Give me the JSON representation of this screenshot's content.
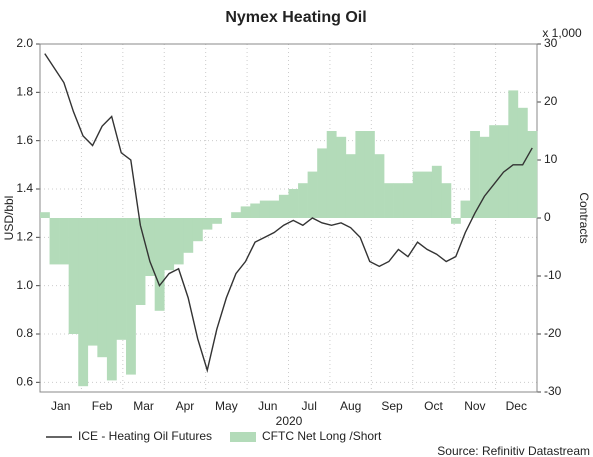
{
  "chart_data": {
    "type": "line",
    "title": "Nymex Heating Oil",
    "y_label": "USD/bbl",
    "y2_label": "Contracts",
    "y2_unit": "x 1,000",
    "x_label": "2020",
    "source": "Source: Refinitiv Datastream",
    "months": [
      "Jan",
      "Feb",
      "Mar",
      "Apr",
      "May",
      "Jun",
      "Jul",
      "Aug",
      "Sep",
      "Oct",
      "Nov",
      "Dec"
    ],
    "ylim": [
      0.56,
      2.0
    ],
    "yticks": [
      {
        "value": 0.6,
        "label": "0.6"
      },
      0.8,
      {
        "value": 1.0,
        "label": "1.0"
      },
      1.2,
      1.4,
      1.6,
      1.8,
      {
        "value": 2.0,
        "label": "2.0"
      }
    ],
    "y2lim": [
      -30,
      30
    ],
    "y2ticks": [
      -30,
      -20,
      -10,
      0,
      10,
      20,
      30
    ],
    "grid": true,
    "series": [
      {
        "name": "ICE - Heating Oil Futures",
        "color": "#333333",
        "kind": "line",
        "values": [
          1.96,
          1.9,
          1.84,
          1.72,
          1.62,
          1.58,
          1.66,
          1.7,
          1.55,
          1.52,
          1.25,
          1.1,
          1.0,
          1.05,
          1.07,
          0.95,
          0.78,
          0.65,
          0.82,
          0.95,
          1.05,
          1.1,
          1.18,
          1.2,
          1.22,
          1.25,
          1.27,
          1.25,
          1.28,
          1.26,
          1.25,
          1.26,
          1.24,
          1.2,
          1.1,
          1.08,
          1.1,
          1.15,
          1.12,
          1.18,
          1.15,
          1.13,
          1.1,
          1.12,
          1.22,
          1.3,
          1.37,
          1.42,
          1.47,
          1.5,
          1.5,
          1.57
        ]
      },
      {
        "name": "CFTC Net Long /Short",
        "color": "#b3dbb9",
        "kind": "area",
        "axis": "y2",
        "values": [
          1,
          -8,
          -8,
          -20,
          -29,
          -22,
          -24,
          -28,
          -21,
          -27,
          -15,
          -10,
          -16,
          -9,
          -8,
          -6,
          -4,
          -2,
          -1,
          0,
          1,
          2,
          2.5,
          3,
          3,
          4,
          5,
          6,
          8,
          12,
          15,
          14,
          11,
          15,
          15,
          11,
          6,
          6,
          6,
          8,
          8,
          9,
          6,
          -1,
          3,
          15,
          14,
          16,
          16,
          22,
          19,
          15
        ]
      }
    ]
  }
}
